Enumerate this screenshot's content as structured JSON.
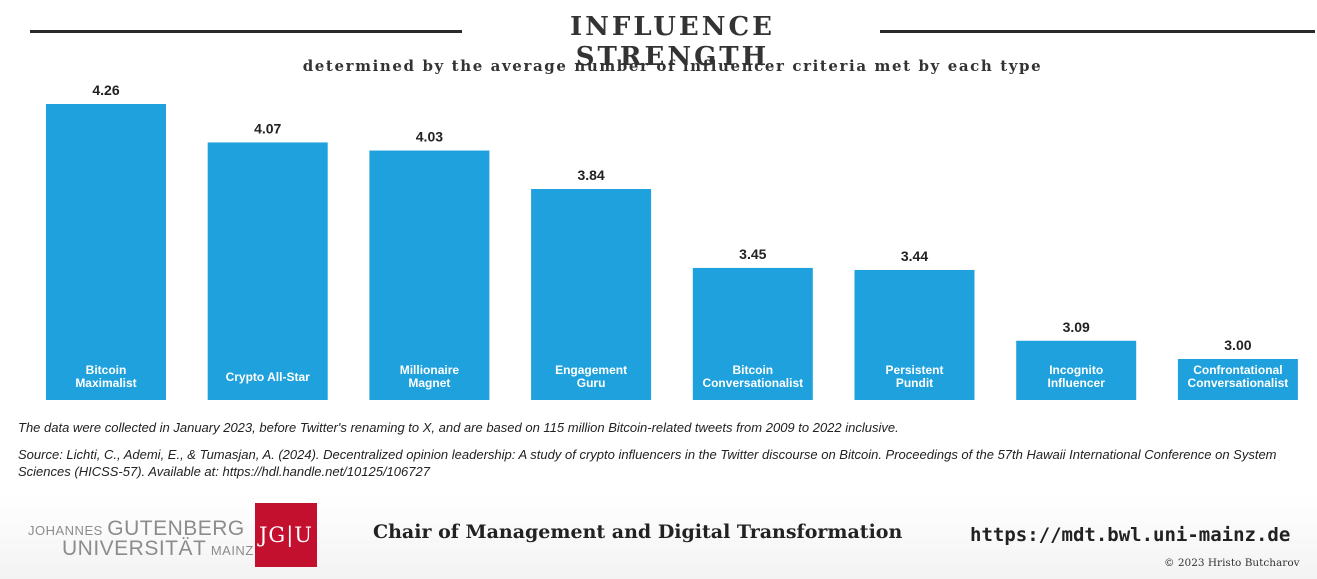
{
  "header": {
    "title": "INFLUENCE STRENGTH",
    "subtitle": "determined by the average number of influencer criteria met by each type"
  },
  "chart_data": {
    "type": "bar",
    "categories": [
      [
        "Bitcoin",
        "Maximalist"
      ],
      [
        "Crypto All-Star"
      ],
      [
        "Millionaire",
        "Magnet"
      ],
      [
        "Engagement",
        "Guru"
      ],
      [
        "Bitcoin",
        "Conversationalist"
      ],
      [
        "Persistent",
        "Pundit"
      ],
      [
        "Incognito",
        "Influencer"
      ],
      [
        "Confrontational",
        "Conversationalist"
      ]
    ],
    "values": [
      4.26,
      4.07,
      4.03,
      3.84,
      3.45,
      3.44,
      3.09,
      3.0
    ],
    "value_labels": [
      "4.26",
      "4.07",
      "4.03",
      "3.84",
      "3.45",
      "3.44",
      "3.09",
      "3.00"
    ],
    "bar_color": "#1ea1dc",
    "title": "INFLUENCE STRENGTH",
    "xlabel": "",
    "ylabel": "",
    "grid": false,
    "axes_visible": false
  },
  "notes": {
    "collection": "The data were collected in January 2023, before Twitter's renaming to X, and are based on 115 million Bitcoin-related tweets from 2009 to 2022 inclusive.",
    "source": "Source: Lichti, C., Ademi, E., & Tumasjan, A. (2024). Decentralized opinion leadership: A study of crypto influencers in the Twitter discourse on Bitcoin. Proceedings of the 57th Hawaii International Conference on System Sciences (HICSS-57). Available at: https://hdl.handle.net/10125/106727"
  },
  "footer": {
    "university_line1_small": "JOHANNES",
    "university_line1_big": "GUTENBERG",
    "university_line2_big": "UNIVERSITÄT",
    "university_line2_small": "MAINZ",
    "logo_text": "JG|U",
    "logo_color": "#c4102f",
    "chair": "Chair of Management and Digital Transformation",
    "url": "https://mdt.bwl.uni-mainz.de",
    "copyright": "© 2023 Hristo Butcharov"
  }
}
